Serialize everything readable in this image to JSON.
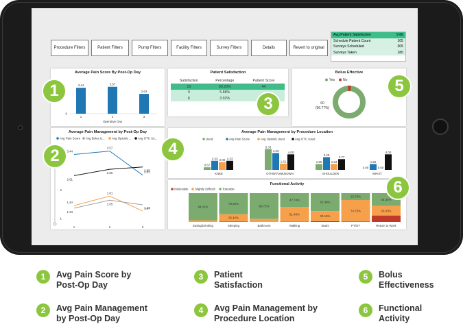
{
  "filters": [
    "Procedure Filters",
    "Patient Filters",
    "Pump Filters",
    "Facility Filters",
    "Survey Filters",
    "Details",
    "Revert to original"
  ],
  "kpis": [
    {
      "label": "Avg Patient Satisfaction",
      "value": "9.66"
    },
    {
      "label": "Schedule Patient Count",
      "value": "105"
    },
    {
      "label": "Surveys Scheduled",
      "value": "305"
    },
    {
      "label": "Surveys Taken",
      "value": "180"
    }
  ],
  "panels": {
    "p1": "Average Pain Score By Post-Op Day",
    "p2": "Patient Satisfaction",
    "p3": "Bolus Effective",
    "p4": "Average Pain Management by Post-Op Day",
    "p5": "Average Pain Management by Procedure Location",
    "p6": "Functional Activity"
  },
  "colors": {
    "green": "#8cc63f",
    "blue": "#1f77b4",
    "orange": "#f7a04b",
    "black": "#111111",
    "gray": "#9aa0a6",
    "sage": "#7bab6f"
  },
  "chart_data": [
    {
      "type": "bar",
      "title": "Average Pain Score By Post-Op Day",
      "xlabel": "Operative Day",
      "categories": [
        "1",
        "2",
        "3"
      ],
      "values": [
        3.44,
        3.57,
        2.63
      ],
      "value_labels": [
        "3.44",
        "3.57",
        "2.63"
      ],
      "yticks": [
        "0"
      ],
      "ylim": [
        0,
        4
      ]
    },
    {
      "type": "table",
      "title": "Patient Satisfaction",
      "columns": [
        "Satisfaction",
        "Percentage",
        "Patient Score"
      ],
      "rows": [
        [
          "10",
          "90.20%",
          "44"
        ],
        [
          "9",
          "5.88%",
          ""
        ],
        [
          "8",
          "3.92%",
          ""
        ]
      ]
    },
    {
      "type": "pie",
      "title": "Bolus Effective",
      "legend": [
        "Yes",
        "No"
      ],
      "values": [
        96.77,
        3.23
      ],
      "label": "60\n(96.77%)"
    },
    {
      "type": "line",
      "title": "Average Pain Management by Post-Op Day",
      "xlabel": "Operative Day",
      "legend": [
        "Avg Pain Score",
        "Avg Bolus U...",
        "Avg Opioids ...",
        "Avg OTC Us..."
      ],
      "categories": [
        "1",
        "2",
        "3"
      ],
      "yticks": [
        "3",
        "2",
        "1"
      ],
      "series": [
        {
          "name": "Avg Pain Score",
          "values": [
            3.44,
            3.57,
            2.63
          ],
          "labels": [
            "3.44",
            "3.57",
            "2.63"
          ]
        },
        {
          "name": "Avg OTC Us...",
          "values": [
            2.61,
            2.86,
            2.95
          ],
          "labels": [
            "2.61",
            "2.86",
            "2.95"
          ]
        },
        {
          "name": "Avg Opioids ...",
          "values": [
            1.44,
            1.81,
            1.23
          ],
          "labels": [
            "1.44",
            "1.81",
            "1.23"
          ]
        },
        {
          "name": "Avg Bolus U...",
          "values": [
            1.34,
            1.65,
            1.47
          ],
          "labels": [
            "1.34",
            "1.65",
            "1.47"
          ]
        }
      ]
    },
    {
      "type": "bar",
      "title": "Average Pain Management by Procedure Location",
      "legend": [
        "Used",
        "Avg Pain Score",
        "Avg Opioids Used",
        "Avg OTC Used"
      ],
      "categories": [
        "KNEE",
        "OTHER/UNKNOWN",
        "SHOULDER",
        "WRIST"
      ],
      "series": [
        {
          "name": "Used",
          "values": [
            0.67,
            5.33,
            1.5,
            0.0
          ],
          "labels": [
            "0.67",
            "5.33",
            "1.50",
            "0.00"
          ]
        },
        {
          "name": "Avg Pain Score",
          "values": [
            2.33,
            4.33,
            3.28,
            1.5
          ],
          "labels": [
            "2.33",
            "4.33",
            "3.28",
            "1.50"
          ]
        },
        {
          "name": "Avg Opioids Used",
          "values": [
            2.0,
            1.61,
            1.53,
            0.0
          ],
          "labels": [
            "2.00",
            "1.61",
            "1.53",
            "0.00"
          ]
        },
        {
          "name": "Avg OTC Used",
          "values": [
            2.33,
            4.0,
            2.77,
            4.0
          ],
          "labels": [
            "2.33",
            "4.00",
            "2.77",
            "4.00"
          ]
        }
      ]
    },
    {
      "type": "bar",
      "title": "Functional Activity",
      "legend": [
        "Intolerable",
        "Slightly Difficult",
        "Tolerable"
      ],
      "categories": [
        "Eating/Drinking",
        "Sleeping",
        "Bathroom",
        "Walking",
        "Stairs",
        "PT/OT",
        "Return to Work"
      ],
      "series": [
        {
          "name": "Tolerable",
          "values": [
            94.11,
            73.32,
            89.72,
            47.74,
            62.46,
            23.78,
            44.44
          ],
          "labels": [
            "94.11%",
            "73.32%",
            "89.72%",
            "47.74%",
            "62.46%",
            "23.78%",
            "44.44%"
          ]
        },
        {
          "name": "Slightly Difficult",
          "values": [
            5.89,
            25.42,
            10.28,
            51.4,
            35.15,
            74.75,
            33.33
          ],
          "labels": [
            "",
            "25.42%",
            "",
            "51.40%",
            "35.15%",
            "74.75%",
            "33.33%"
          ]
        },
        {
          "name": "Intolerable",
          "values": [
            0,
            1.26,
            0,
            0.86,
            2.39,
            1.47,
            22.23
          ],
          "labels": [
            "",
            "",
            "",
            "",
            "",
            "",
            ""
          ]
        }
      ]
    }
  ],
  "legend_items": [
    {
      "num": "1",
      "label": "Avg Pain Score by Post-Op Day"
    },
    {
      "num": "2",
      "label": "Avg Pain Management by Post-Op Day"
    },
    {
      "num": "3",
      "label": "Patient Satisfaction"
    },
    {
      "num": "4",
      "label": "Avg Pain Management by Procedure Location"
    },
    {
      "num": "5",
      "label": "Bolus Effectiveness"
    },
    {
      "num": "6",
      "label": "Functional Activity"
    }
  ]
}
